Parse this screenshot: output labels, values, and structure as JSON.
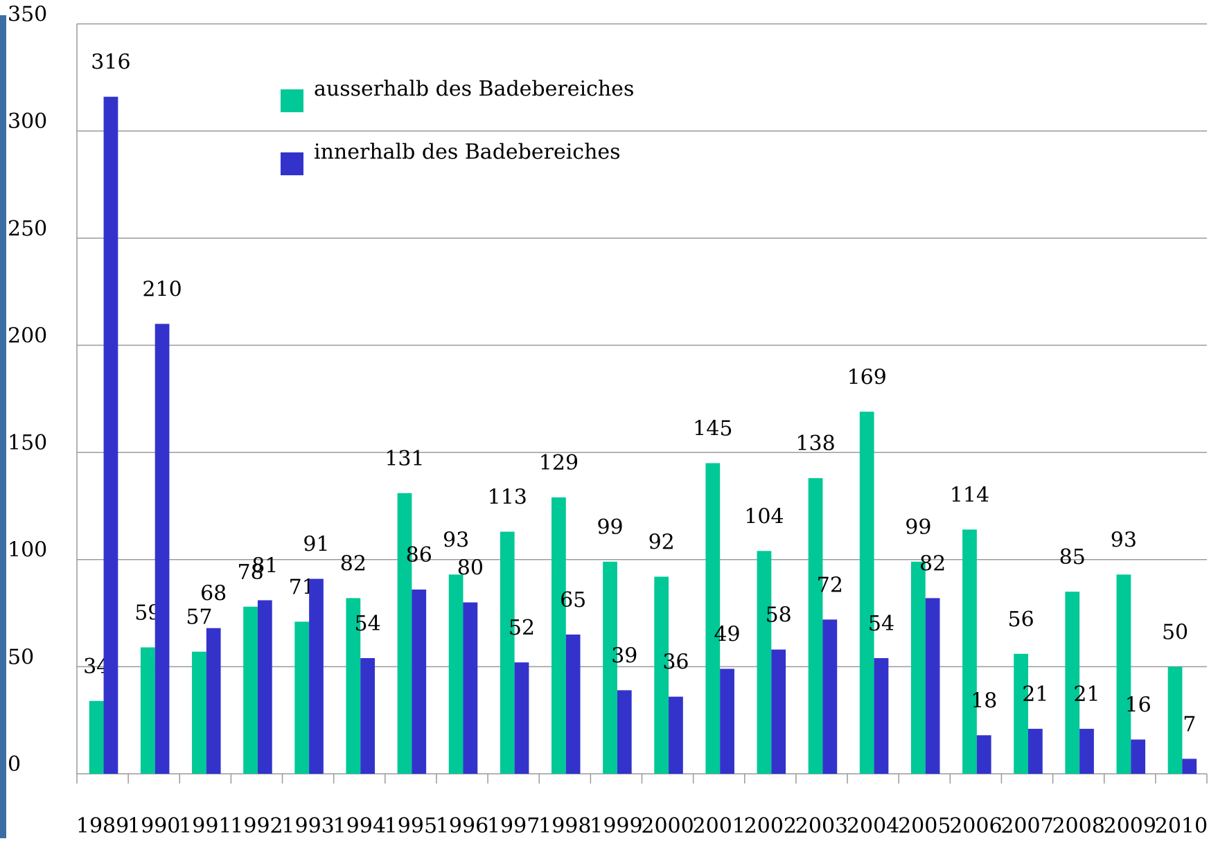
{
  "chart_data": {
    "type": "bar",
    "categories": [
      "1989",
      "1990",
      "1991",
      "1992",
      "1993",
      "1994",
      "1995",
      "1996",
      "1997",
      "1998",
      "1999",
      "2000",
      "2001",
      "2002",
      "2003",
      "2004",
      "2005",
      "2006",
      "2007",
      "2008",
      "2009",
      "2010"
    ],
    "series": [
      {
        "name": "ausserhalb des Badebereiches",
        "color": "#00c896",
        "values": [
          34,
          59,
          57,
          78,
          71,
          82,
          131,
          93,
          113,
          129,
          99,
          92,
          145,
          104,
          138,
          169,
          99,
          114,
          56,
          85,
          93,
          50
        ]
      },
      {
        "name": "innerhalb des Badebereiches",
        "color": "#3333cc",
        "values": [
          316,
          210,
          68,
          81,
          91,
          54,
          86,
          80,
          52,
          65,
          39,
          36,
          49,
          58,
          72,
          54,
          82,
          18,
          21,
          21,
          16,
          7
        ]
      }
    ],
    "ylim": [
      0,
      350
    ],
    "yticks": [
      0,
      50,
      100,
      150,
      200,
      250,
      300,
      350
    ],
    "grid": true,
    "data_labels": true
  }
}
